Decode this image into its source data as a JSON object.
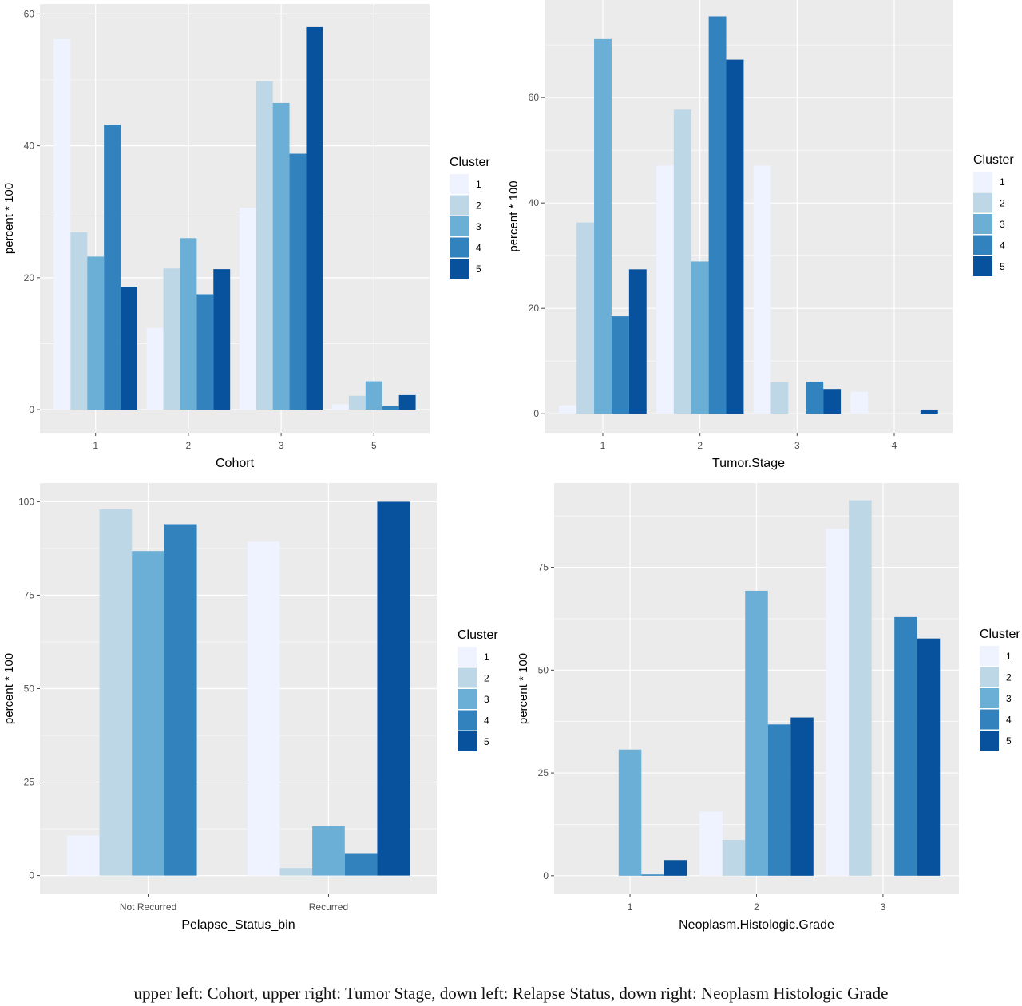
{
  "legend_title": "Cluster",
  "cluster_levels": [
    "1",
    "2",
    "3",
    "4",
    "5"
  ],
  "palette": [
    "#eff3ff",
    "#bdd7e7",
    "#6baed6",
    "#3182bd",
    "#08519c"
  ],
  "panel_background": "#ebebeb",
  "gridline_color": "#ffffff",
  "caption": "upper left: Cohort, upper right: Tumor Stage, down left: Relapse Status, down right: Neoplasm Histologic Grade",
  "chart_data": [
    {
      "type": "bar",
      "position": "upper left",
      "xlabel": "Cohort",
      "ylabel": "percent * 100",
      "categories": [
        "1",
        "2",
        "3",
        "5"
      ],
      "ylim": [
        -3.5,
        61.5
      ],
      "yticks": [
        0,
        20,
        40,
        60
      ],
      "series": [
        {
          "name": "1",
          "values": [
            56.2,
            12.4,
            30.6,
            0.8
          ]
        },
        {
          "name": "2",
          "values": [
            26.9,
            21.4,
            49.8,
            2.1
          ]
        },
        {
          "name": "3",
          "values": [
            23.2,
            26.0,
            46.5,
            4.3
          ]
        },
        {
          "name": "4",
          "values": [
            43.2,
            17.5,
            38.8,
            0.5
          ]
        },
        {
          "name": "5",
          "values": [
            18.6,
            21.3,
            58.0,
            2.2
          ]
        }
      ]
    },
    {
      "type": "bar",
      "position": "upper right",
      "xlabel": "Tumor.Stage",
      "ylabel": "percent * 100",
      "categories": [
        "1",
        "2",
        "3",
        "4"
      ],
      "ylim": [
        -3.6,
        78.5
      ],
      "yticks": [
        0,
        20,
        40,
        60
      ],
      "series": [
        {
          "name": "1",
          "values": [
            1.6,
            47.1,
            47.1,
            4.2
          ]
        },
        {
          "name": "2",
          "values": [
            36.3,
            57.7,
            6.0,
            0
          ]
        },
        {
          "name": "3",
          "values": [
            71.1,
            28.9,
            0,
            0
          ]
        },
        {
          "name": "4",
          "values": [
            18.5,
            75.4,
            6.1,
            0
          ]
        },
        {
          "name": "5",
          "values": [
            27.4,
            67.2,
            4.7,
            0.8
          ]
        }
      ]
    },
    {
      "type": "bar",
      "position": "down left",
      "xlabel": "Pelapse_Status_bin",
      "ylabel": "percent * 100",
      "categories": [
        "Not Recurred",
        "Recurred"
      ],
      "ylim": [
        -5,
        105
      ],
      "yticks": [
        0,
        25,
        50,
        75,
        100
      ],
      "series": [
        {
          "name": "1",
          "values": [
            10.7,
            89.3
          ]
        },
        {
          "name": "2",
          "values": [
            98.0,
            2.0
          ]
        },
        {
          "name": "3",
          "values": [
            86.8,
            13.2
          ]
        },
        {
          "name": "4",
          "values": [
            94.0,
            6.0
          ]
        },
        {
          "name": "5",
          "values": [
            0,
            100.0
          ]
        }
      ]
    },
    {
      "type": "bar",
      "position": "down right",
      "xlabel": "Neoplasm.Histologic.Grade",
      "ylabel": "percent * 100",
      "categories": [
        "1",
        "2",
        "3"
      ],
      "ylim": [
        -4.5,
        95.5
      ],
      "yticks": [
        0,
        25,
        50,
        75
      ],
      "series": [
        {
          "name": "1",
          "values": [
            0,
            15.6,
            84.4
          ]
        },
        {
          "name": "2",
          "values": [
            0,
            8.7,
            91.3
          ]
        },
        {
          "name": "3",
          "values": [
            30.7,
            69.3,
            0
          ]
        },
        {
          "name": "4",
          "values": [
            0.3,
            36.8,
            62.9
          ]
        },
        {
          "name": "5",
          "values": [
            3.8,
            38.5,
            57.7
          ]
        }
      ]
    }
  ]
}
